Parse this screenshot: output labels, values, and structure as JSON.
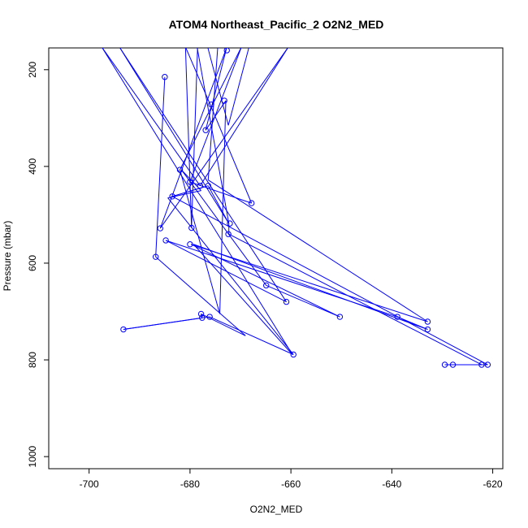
{
  "chart_data": {
    "type": "line",
    "title": "ATOM4 Northeast_Pacific_2 O2N2_MED",
    "xlabel": "O2N2_MED",
    "ylabel": "Pressure (mbar)",
    "xlim": [
      -708,
      -618
    ],
    "ylim": [
      1025,
      155
    ],
    "y_inverted": true,
    "x_ticks": [
      -700,
      -680,
      -660,
      -640,
      -620
    ],
    "y_ticks": [
      200,
      400,
      600,
      800,
      1000
    ],
    "grid": false,
    "series": [
      {
        "color": "#0000ff",
        "marker": "open-circle",
        "line": true,
        "points": [
          [
            -685.0,
            215
          ],
          [
            -686.8,
            587
          ],
          [
            -669,
            750
          ],
          [
            -677.8,
            705
          ],
          [
            -677.6,
            713
          ],
          [
            -693.2,
            737
          ],
          [
            -676.1,
            711
          ],
          [
            -659.5,
            789
          ],
          [
            -684.4,
            465
          ],
          [
            -677.8,
            450
          ],
          [
            -681.7,
            407
          ],
          [
            -664.9,
            646
          ],
          [
            -650.3,
            711
          ],
          [
            -679.8,
            561
          ],
          [
            -632.9,
            721
          ],
          [
            -676.4,
            428
          ],
          [
            -674.5,
            153
          ],
          [
            -678.6,
            153
          ],
          [
            -672.3,
            518
          ],
          [
            -672.3,
            540
          ],
          [
            -622.2,
            810
          ],
          [
            -627.9,
            810
          ],
          [
            -629.5,
            810
          ],
          [
            -621.0,
            810
          ],
          [
            -683.5,
            462
          ],
          [
            -676.4,
            440
          ],
          [
            -672.3,
            518
          ],
          [
            -694.0,
            153
          ],
          [
            -660.9,
            680
          ],
          [
            -684.8,
            553
          ],
          [
            -638.9,
            711
          ],
          [
            -632.9,
            737
          ],
          [
            -679.3,
            561
          ],
          [
            -659.7,
            789
          ],
          [
            -697.5,
            153
          ],
          [
            -678.0,
            440
          ],
          [
            -660.5,
            153
          ],
          [
            -685.9,
            528
          ],
          [
            -672.7,
            153
          ],
          [
            -676.9,
            325
          ],
          [
            -672.9,
            264
          ],
          [
            -674.1,
            705
          ],
          [
            -682.0,
            407
          ],
          [
            -669.8,
            153
          ],
          [
            -680.0,
            432
          ],
          [
            -667.8,
            476
          ],
          [
            -676.0,
            272
          ],
          [
            -680.9,
            153
          ],
          [
            -679.7,
            527
          ],
          [
            -678.5,
            153
          ],
          [
            -676.5,
            153
          ],
          [
            -672.4,
            315
          ],
          [
            -668.3,
            153
          ],
          [
            -662.0,
            153
          ],
          [
            -678.3,
            153
          ]
        ]
      }
    ],
    "markers_only": [
      [
        -685.0,
        215
      ],
      [
        -672.7,
        160
      ],
      [
        -673.2,
        264
      ],
      [
        -675.8,
        272
      ],
      [
        -676.9,
        325
      ],
      [
        -682.0,
        407
      ],
      [
        -680.0,
        432
      ],
      [
        -678.0,
        440
      ],
      [
        -676.4,
        440
      ],
      [
        -683.5,
        462
      ],
      [
        -667.8,
        476
      ],
      [
        -672.1,
        518
      ],
      [
        -679.7,
        527
      ],
      [
        -685.9,
        528
      ],
      [
        -672.4,
        540
      ],
      [
        -684.8,
        553
      ],
      [
        -680.0,
        561
      ],
      [
        -686.8,
        587
      ],
      [
        -664.9,
        646
      ],
      [
        -660.9,
        680
      ],
      [
        -650.3,
        711
      ],
      [
        -638.9,
        711
      ],
      [
        -632.9,
        721
      ],
      [
        -632.9,
        737
      ],
      [
        -677.8,
        705
      ],
      [
        -677.6,
        713
      ],
      [
        -676.1,
        711
      ],
      [
        -693.2,
        737
      ],
      [
        -659.5,
        789
      ],
      [
        -629.5,
        810
      ],
      [
        -627.9,
        810
      ],
      [
        -622.2,
        810
      ],
      [
        -621.0,
        810
      ]
    ]
  }
}
